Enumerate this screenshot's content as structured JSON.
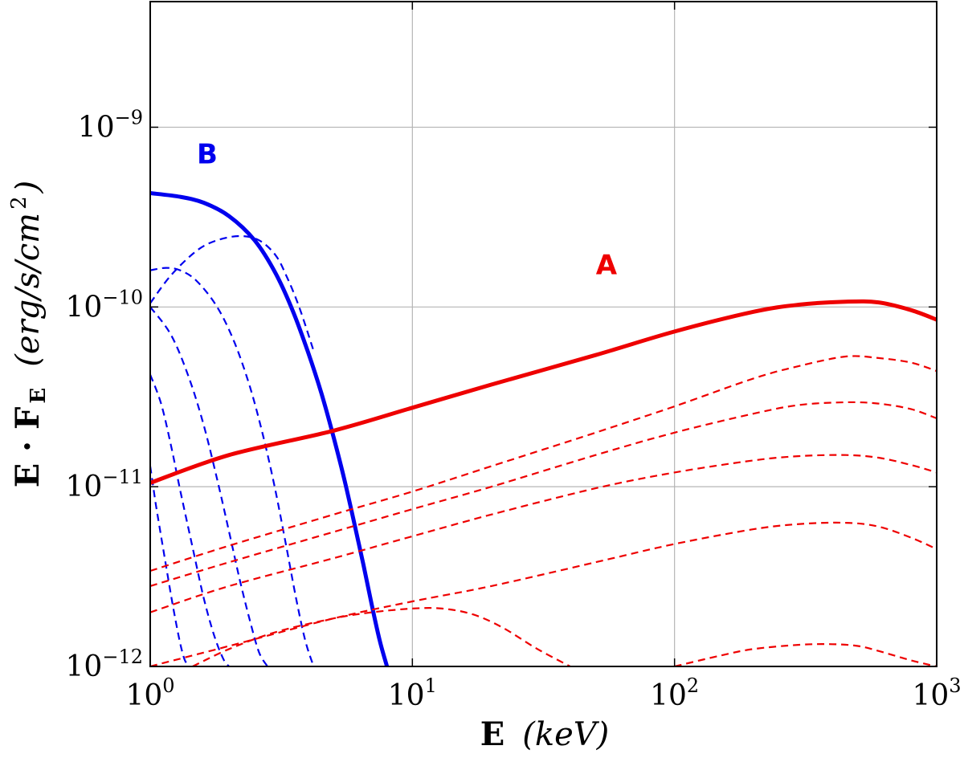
{
  "chart_data": {
    "type": "line",
    "title": "",
    "xlabel": {
      "main": "E",
      "unit": "(keV)"
    },
    "ylabel": {
      "main": "E · F",
      "sub": "E",
      "unit": "(erg/s/cm",
      "unit_sup": "2",
      "unit_close": ")"
    },
    "x_scale": "log",
    "y_scale": "log",
    "xlim": [
      1,
      1000
    ],
    "ylim": [
      1e-12,
      5e-09
    ],
    "grid": true,
    "x_ticks": [
      {
        "base": "10",
        "exp": "0",
        "value": 1
      },
      {
        "base": "10",
        "exp": "1",
        "value": 10
      },
      {
        "base": "10",
        "exp": "2",
        "value": 100
      },
      {
        "base": "10",
        "exp": "3",
        "value": 1000
      }
    ],
    "y_ticks": [
      {
        "base": "10",
        "exp": "−12",
        "value": 1e-12
      },
      {
        "base": "10",
        "exp": "−11",
        "value": 1e-11
      },
      {
        "base": "10",
        "exp": "−10",
        "value": 1e-10
      },
      {
        "base": "10",
        "exp": "−9",
        "value": 1e-09
      }
    ],
    "annotations": [
      {
        "text": "B",
        "x": 1.65,
        "y": 6.3e-10,
        "color": "#0000ee"
      },
      {
        "text": "A",
        "x": 55,
        "y": 1.52e-10,
        "color": "#ee0000"
      }
    ],
    "colors": {
      "A": "#ee0000",
      "B": "#0000ee"
    },
    "series": [
      {
        "group": "B",
        "style": "solid",
        "x": [
          1.0,
          1.3,
          1.6,
          2.0,
          2.5,
          3.0,
          3.5,
          4.0,
          4.5,
          5.0,
          5.5,
          6.0,
          6.5,
          7.0,
          7.5,
          8.0
        ],
        "y": [
          4.3e-10,
          4.1e-10,
          3.8e-10,
          3.2e-10,
          2.35e-10,
          1.55e-10,
          9.5e-11,
          5.6e-11,
          3.3e-11,
          1.9e-11,
          1.1e-11,
          6.3e-12,
          3.7e-12,
          2.2e-12,
          1.4e-12,
          1e-12
        ]
      },
      {
        "group": "B",
        "style": "dashed",
        "x": [
          1.0,
          1.2,
          1.5,
          1.8,
          2.2,
          2.6,
          3.0,
          3.3,
          3.7,
          4.2
        ],
        "y": [
          1.05e-10,
          1.5e-10,
          2.05e-10,
          2.35e-10,
          2.48e-10,
          2.35e-10,
          1.95e-10,
          1.5e-10,
          1e-10,
          5.7e-11
        ]
      },
      {
        "group": "B",
        "style": "dashed",
        "x": [
          1.0,
          1.15,
          1.3,
          1.5,
          1.8,
          2.1,
          2.4,
          2.7,
          3.0,
          3.3,
          3.6,
          3.9,
          4.2
        ],
        "y": [
          1.6e-10,
          1.65e-10,
          1.6e-10,
          1.4e-10,
          1e-10,
          6.3e-11,
          3.6e-11,
          1.9e-11,
          9.6e-12,
          4.7e-12,
          2.4e-12,
          1.4e-12,
          1e-12
        ]
      },
      {
        "group": "B",
        "style": "dashed",
        "x": [
          1.0,
          1.2,
          1.4,
          1.6,
          1.8,
          2.0,
          2.2,
          2.4,
          2.6,
          2.8
        ],
        "y": [
          1e-10,
          7e-11,
          4.1e-11,
          2.2e-11,
          1.1e-11,
          5.6e-12,
          3e-12,
          1.8e-12,
          1.2e-12,
          1e-12
        ]
      },
      {
        "group": "B",
        "style": "dashed",
        "x": [
          1.0,
          1.1,
          1.2,
          1.3,
          1.45,
          1.6,
          1.75,
          1.9,
          2.0
        ],
        "y": [
          4.2e-11,
          2.9e-11,
          1.7e-11,
          9.6e-12,
          4.6e-12,
          2.4e-12,
          1.5e-12,
          1.1e-12,
          1e-12
        ]
      },
      {
        "group": "B",
        "style": "dashed",
        "x": [
          1.0,
          1.05,
          1.1,
          1.15,
          1.2,
          1.25,
          1.3,
          1.35,
          1.4
        ],
        "y": [
          1.3e-11,
          8e-12,
          5.3e-12,
          3.6e-12,
          2.5e-12,
          1.8e-12,
          1.35e-12,
          1.1e-12,
          1e-12
        ]
      },
      {
        "group": "A",
        "style": "solid",
        "x": [
          1,
          2,
          5,
          10,
          20,
          50,
          100,
          200,
          300,
          450,
          600,
          800,
          1000
        ],
        "y": [
          1.05e-11,
          1.5e-11,
          2.05e-11,
          2.75e-11,
          3.7e-11,
          5.4e-11,
          7.3e-11,
          9.4e-11,
          1.03e-10,
          1.07e-10,
          1.06e-10,
          9.6e-11,
          8.5e-11
        ]
      },
      {
        "group": "A",
        "style": "dashed",
        "x": [
          1,
          2,
          5,
          10,
          20,
          50,
          100,
          200,
          300,
          450,
          600,
          800,
          1000
        ],
        "y": [
          3.4e-12,
          4.7e-12,
          7e-12,
          9.4e-12,
          1.3e-11,
          2e-11,
          2.8e-11,
          4e-11,
          4.7e-11,
          5.3e-11,
          5.2e-11,
          4.9e-11,
          4.4e-11
        ]
      },
      {
        "group": "A",
        "style": "dashed",
        "x": [
          1,
          2,
          5,
          10,
          20,
          50,
          100,
          200,
          300,
          450,
          600,
          800,
          1000
        ],
        "y": [
          2.8e-12,
          3.8e-12,
          5.6e-12,
          7.5e-12,
          1e-11,
          1.5e-11,
          2e-11,
          2.55e-11,
          2.85e-11,
          2.95e-11,
          2.9e-11,
          2.7e-11,
          2.4e-11
        ]
      },
      {
        "group": "A",
        "style": "dashed",
        "x": [
          1,
          2,
          5,
          10,
          20,
          50,
          100,
          200,
          300,
          450,
          600,
          800,
          1000
        ],
        "y": [
          2e-12,
          2.8e-12,
          4e-12,
          5.3e-12,
          7e-12,
          9.8e-12,
          1.2e-11,
          1.4e-11,
          1.48e-11,
          1.5e-11,
          1.45e-11,
          1.32e-11,
          1.2e-11
        ]
      },
      {
        "group": "A",
        "style": "dashed",
        "x": [
          1,
          2,
          5,
          10,
          20,
          50,
          100,
          200,
          300,
          450,
          600,
          800,
          1000
        ],
        "y": [
          1e-12,
          1.3e-12,
          1.85e-12,
          2.3e-12,
          2.8e-12,
          3.8e-12,
          4.8e-12,
          5.8e-12,
          6.2e-12,
          6.3e-12,
          6e-12,
          5.2e-12,
          4.5e-12
        ]
      },
      {
        "group": "A",
        "style": "dashed",
        "x": [
          1.45,
          2,
          3,
          5,
          7,
          10,
          13,
          17,
          22,
          30,
          40
        ],
        "y": [
          1e-12,
          1.25e-12,
          1.55e-12,
          1.85e-12,
          2e-12,
          2.1e-12,
          2.1e-12,
          1.95e-12,
          1.65e-12,
          1.25e-12,
          1e-12
        ]
      },
      {
        "group": "A",
        "style": "dashed",
        "x": [
          100,
          150,
          200,
          300,
          400,
          500,
          600,
          800,
          1000
        ],
        "y": [
          1e-12,
          1.15e-12,
          1.25e-12,
          1.32e-12,
          1.33e-12,
          1.3e-12,
          1.22e-12,
          1.08e-12,
          1e-12
        ]
      }
    ]
  }
}
